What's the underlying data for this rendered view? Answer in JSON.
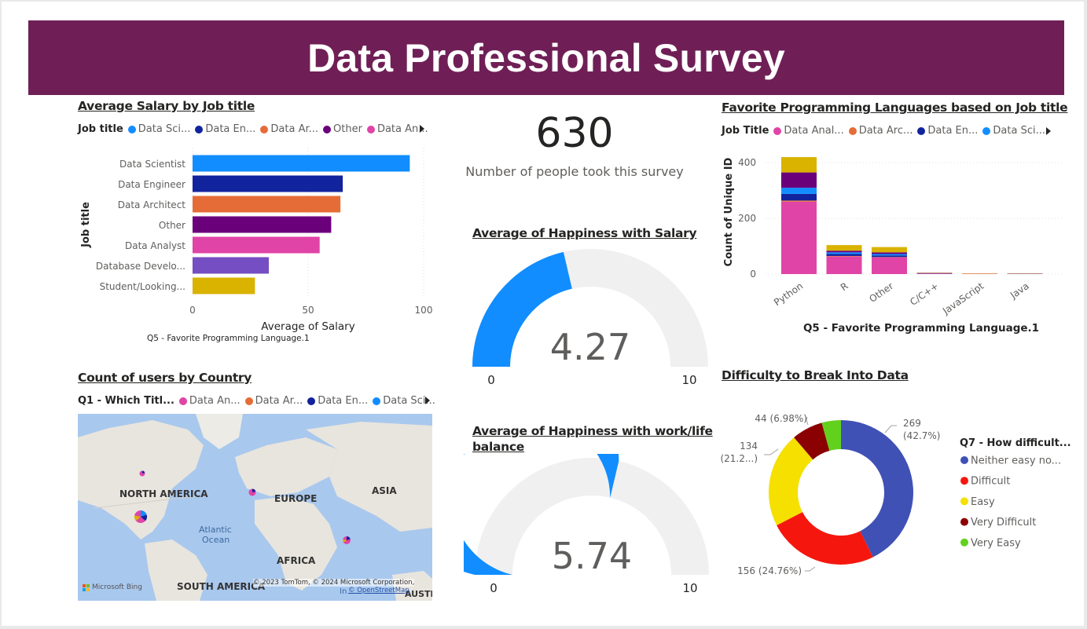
{
  "header": {
    "title": "Data Professional Survey"
  },
  "salary_chart": {
    "title": "Average Salary by Job title",
    "legend_title": "Job title",
    "legend": [
      {
        "label": "Data Sci...",
        "color": "#118dff"
      },
      {
        "label": "Data En...",
        "color": "#12239e"
      },
      {
        "label": "Data Ar...",
        "color": "#e66c37"
      },
      {
        "label": "Other",
        "color": "#6b007b"
      },
      {
        "label": "Data An...",
        "color": "#e044a7"
      }
    ],
    "overlap_text": "Q5 - Favorite Programming Language.1"
  },
  "survey_card": {
    "value": "630",
    "label": "Number of people took this survey"
  },
  "gauge_salary": {
    "title": "Average of Happiness with Salary",
    "value_label": "4.27",
    "min_label": "0",
    "max_label": "10",
    "value": 4.27,
    "min": 0,
    "max": 10,
    "color": "#118dff"
  },
  "gauge_worklife": {
    "title_line1": "Average of Happiness with work/life",
    "title_line2": "balance",
    "value_label": "5.74",
    "min_label": "0",
    "max_label": "10",
    "value": 5.74,
    "min": 0,
    "max": 10,
    "color": "#118dff"
  },
  "lang_chart": {
    "title": "Favorite Programming Languages based on Job title",
    "legend_title": "Job Title",
    "legend": [
      {
        "label": "Data Anal...",
        "color": "#e044a7"
      },
      {
        "label": "Data Arc...",
        "color": "#e66c37"
      },
      {
        "label": "Data En...",
        "color": "#12239e"
      },
      {
        "label": "Data Sci...",
        "color": "#118dff"
      }
    ]
  },
  "country_map": {
    "title": "Count of users by Country",
    "legend_title": "Q1 - Which Titl...",
    "legend": [
      {
        "label": "Data An...",
        "color": "#e044a7"
      },
      {
        "label": "Data Ar...",
        "color": "#e66c37"
      },
      {
        "label": "Data En...",
        "color": "#12239e"
      },
      {
        "label": "Data Sci...",
        "color": "#118dff"
      }
    ],
    "labels": {
      "north_america": "NORTH AMERICA",
      "europe": "EUROPE",
      "asia": "ASIA",
      "africa": "AFRICA",
      "south_america": "SOUTH AMERICA",
      "atlantic1": "Atlantic",
      "atlantic2": "Ocean",
      "austr": "AUSTI"
    },
    "bing": "Microsoft Bing",
    "copyright": "© 2023 TomTom, © 2024 Microsoft Corporation,",
    "osm": "© OpenStreetMap",
    "in_label": "In"
  },
  "difficulty_chart": {
    "title": "Difficulty to Break Into Data"
  },
  "chart_data": [
    {
      "type": "bar",
      "orientation": "horizontal",
      "title": "Average Salary by Job title",
      "xlabel": "Average of Salary",
      "ylabel": "Job title",
      "categories": [
        "Data Scientist",
        "Data Engineer",
        "Data Architect",
        "Other",
        "Data Analyst",
        "Database Develo...",
        "Student/Looking..."
      ],
      "values": [
        94,
        65,
        64,
        60,
        55,
        33,
        27
      ],
      "colors": [
        "#118dff",
        "#12239e",
        "#e66c37",
        "#6b007b",
        "#e044a7",
        "#744ec2",
        "#d9b300"
      ],
      "xlim": [
        0,
        100
      ],
      "xticks": [
        "0",
        "50",
        "100"
      ],
      "grid": true
    },
    {
      "type": "bar",
      "stacked": true,
      "title": "Favorite Programming Languages based on Job title",
      "xlabel": "Q5 - Favorite Programming Language.1",
      "ylabel": "Count of Unique ID",
      "categories": [
        "Python",
        "R",
        "Other",
        "C/C++",
        "JavaScript",
        "Java"
      ],
      "ylim": [
        0,
        440
      ],
      "yticks": [
        "0",
        "200",
        "400"
      ],
      "series": [
        {
          "name": "Data Anal...",
          "color": "#e044a7",
          "values": [
            260,
            63,
            60,
            2,
            1,
            1
          ]
        },
        {
          "name": "Data Arc...",
          "color": "#e66c37",
          "values": [
            4,
            2,
            1,
            0,
            1,
            0
          ]
        },
        {
          "name": "Data En...",
          "color": "#12239e",
          "values": [
            24,
            7,
            6,
            1,
            0,
            1
          ]
        },
        {
          "color": "#118dff",
          "values": [
            22,
            6,
            5,
            0,
            0,
            0
          ]
        },
        {
          "color": "#6b007b",
          "values": [
            55,
            6,
            6,
            1,
            0,
            0
          ]
        },
        {
          "color": "#d9b300",
          "values": [
            55,
            20,
            19,
            1,
            1,
            1
          ]
        }
      ],
      "grid": true
    },
    {
      "type": "pie",
      "donut": true,
      "title": "Difficulty to Break Into Data",
      "legend_title": "Q7 - How difficult...",
      "legend_placement": "right",
      "slices": [
        {
          "name": "Neither easy no...",
          "value": 269,
          "label": "269",
          "pct": "(42.7%)",
          "color": "#3f51b5"
        },
        {
          "name": "Difficult",
          "value": 156,
          "label": "156 (24.76%)",
          "pct": "",
          "color": "#f5170e"
        },
        {
          "name": "Easy",
          "value": 134,
          "label": "134",
          "pct": "(21.2...)",
          "color": "#f5e000"
        },
        {
          "name": "Very Difficult",
          "value": 44,
          "label": "44 (6.98%)",
          "pct": "",
          "color": "#8b0000"
        },
        {
          "name": "Very Easy",
          "value": 27,
          "label": "",
          "pct": "",
          "color": "#62d11d"
        }
      ]
    }
  ]
}
